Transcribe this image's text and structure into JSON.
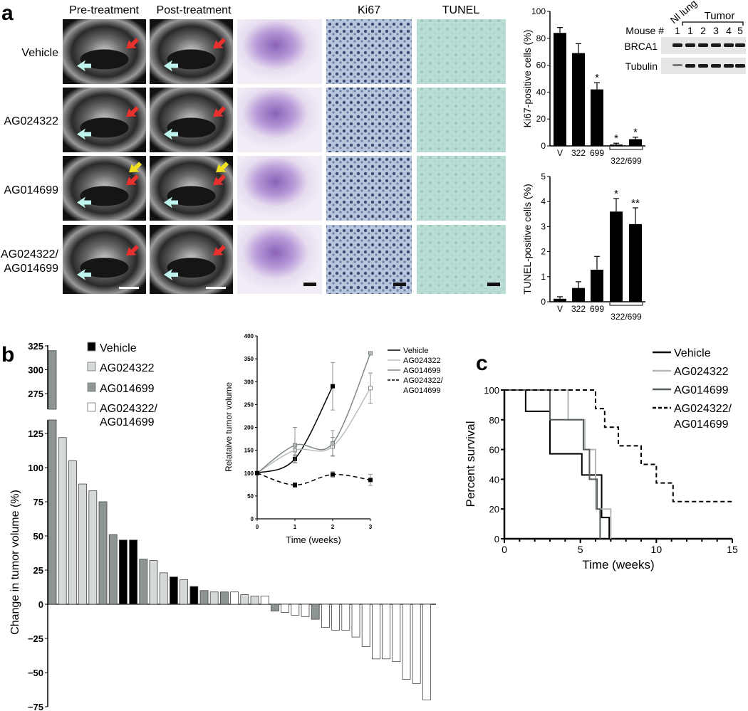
{
  "panel_labels": {
    "a": "a",
    "b": "b",
    "c": "c"
  },
  "panel_a": {
    "columns": [
      "Pre-treatment",
      "Post-treatment",
      "Ki67",
      "TUNEL"
    ],
    "rows": [
      [
        "Vehicle"
      ],
      [
        "AG024322"
      ],
      [
        "AG014699"
      ],
      [
        "AG024322/",
        "AG014699"
      ]
    ],
    "arrow_colors": {
      "cyan": "#bff3ee",
      "red": "#e8302e",
      "yellow": "#f0e020"
    }
  },
  "western_blot": {
    "nl_lung": "Nl lung",
    "tumor": "Tumor",
    "mouse_label": "Mouse #",
    "lanes": [
      "1",
      "1",
      "2",
      "3",
      "4",
      "5"
    ],
    "bands": [
      "BRCA1",
      "Tubulin"
    ]
  },
  "chart_data": [
    {
      "id": "ki67",
      "type": "bar",
      "ylabel": "Ki67-positive cells (%)",
      "categories": [
        "V",
        "322",
        "699",
        "322/699",
        "322/699"
      ],
      "values": [
        84,
        69,
        42,
        1,
        5
      ],
      "errors": [
        4,
        7,
        5,
        1,
        1.5
      ],
      "annotations": [
        "",
        "",
        "*",
        "*",
        "*"
      ],
      "ylim": [
        0,
        100
      ],
      "yticks": [
        0,
        20,
        40,
        60,
        80,
        100
      ],
      "color": "#000000"
    },
    {
      "id": "tunel",
      "type": "bar",
      "ylabel": "TUNEL-positive cells (%)",
      "categories": [
        "V",
        "322",
        "699",
        "322/699",
        "322/699"
      ],
      "values": [
        0.12,
        0.55,
        1.28,
        3.6,
        3.1
      ],
      "errors": [
        0.08,
        0.25,
        0.53,
        0.52,
        0.65
      ],
      "annotations": [
        "",
        "",
        "",
        "*",
        "**"
      ],
      "ylim": [
        0,
        5
      ],
      "yticks": [
        0,
        1,
        2,
        3,
        4,
        5
      ],
      "color": "#000000"
    },
    {
      "id": "waterfall",
      "type": "bar",
      "ylabel": "Change in tumor volume (%)",
      "ylim": [
        -75,
        325
      ],
      "axis_break": [
        135,
        262
      ],
      "yticks": [
        -75,
        -50,
        -25,
        0,
        25,
        50,
        75,
        100,
        125,
        275,
        300,
        325
      ],
      "legend": [
        {
          "name": "Vehicle",
          "color": "#000000"
        },
        {
          "name": "AG024322",
          "color": "#d6d9d9"
        },
        {
          "name": "AG014699",
          "color": "#8e9595"
        },
        {
          "name": "AG024322/",
          "name2": "AG014699",
          "color": "#ffffff"
        }
      ],
      "values": [
        320,
        122,
        105,
        88,
        83,
        75,
        51,
        47,
        47,
        33,
        32,
        23,
        20,
        18,
        13,
        10,
        9,
        9,
        9,
        7,
        6,
        6,
        -5,
        -6,
        -8,
        -9,
        -11,
        -17,
        -19,
        -19,
        -24,
        -31,
        -40,
        -40,
        -42,
        -55,
        -58,
        -70
      ],
      "groups": [
        2,
        1,
        1,
        1,
        1,
        2,
        2,
        0,
        0,
        2,
        1,
        1,
        0,
        1,
        0,
        2,
        1,
        2,
        3,
        1,
        1,
        3,
        2,
        3,
        3,
        3,
        2,
        3,
        3,
        3,
        3,
        3,
        3,
        3,
        3,
        3,
        3,
        3
      ]
    },
    {
      "id": "tumor-volume",
      "type": "line",
      "xlabel": "Time (weeks)",
      "ylabel": "Relataive tumor volume",
      "x": [
        0,
        1,
        2,
        3
      ],
      "xlim": [
        0,
        3
      ],
      "ylim": [
        0,
        400
      ],
      "yticks": [
        0,
        50,
        100,
        150,
        200,
        250,
        300,
        350,
        400
      ],
      "series": [
        {
          "name": "Vehicle",
          "values": [
            100,
            131,
            290,
            null
          ],
          "errors": [
            0,
            8,
            52,
            null
          ],
          "color": "#000000",
          "dash": false,
          "marker_fill": "#000000"
        },
        {
          "name": "AG024322",
          "values": [
            100,
            150,
            158,
            286
          ],
          "errors": [
            0,
            10,
            20,
            33
          ],
          "color": "#b9bdbd",
          "dash": false,
          "marker_fill": "#ffffff"
        },
        {
          "name": "AG014699",
          "values": [
            100,
            161,
            165,
            362
          ],
          "errors": [
            0,
            39,
            28,
            0
          ],
          "color": "#7f8888",
          "dash": false,
          "marker_fill": "#b0b5b5"
        },
        {
          "name": "AG024322/",
          "name2": "AG014699",
          "values": [
            100,
            74,
            97,
            85
          ],
          "errors": [
            0,
            5,
            6,
            12
          ],
          "color": "#000000",
          "dash": true,
          "marker_fill": "#000000"
        }
      ]
    },
    {
      "id": "survival",
      "type": "line",
      "xlabel": "Time (weeks)",
      "ylabel": "Percent survival",
      "xlim": [
        0,
        15
      ],
      "ylim": [
        0,
        100
      ],
      "xticks": [
        0,
        5,
        10,
        15
      ],
      "yticks": [
        0,
        20,
        40,
        60,
        80,
        100
      ],
      "series": [
        {
          "name": "Vehicle",
          "color": "#000000",
          "dash": false,
          "steps": [
            [
              0,
              100
            ],
            [
              1.4,
              85.7
            ],
            [
              3,
              57.1
            ],
            [
              5.1,
              42.9
            ],
            [
              6.4,
              14.3
            ],
            [
              6.9,
              0
            ]
          ]
        },
        {
          "name": "AG024322",
          "color": "#b3b8b8",
          "dash": false,
          "steps": [
            [
              0,
              100
            ],
            [
              4.2,
              80
            ],
            [
              5.3,
              60
            ],
            [
              6.0,
              20
            ],
            [
              7.0,
              0
            ]
          ]
        },
        {
          "name": "AG014699",
          "color": "#555c5c",
          "dash": false,
          "steps": [
            [
              0,
              100
            ],
            [
              3,
              80
            ],
            [
              5.2,
              60
            ],
            [
              5.6,
              40
            ],
            [
              6.1,
              20
            ],
            [
              6.3,
              0
            ]
          ]
        },
        {
          "name": "AG024322/",
          "name2": "AG014699",
          "color": "#000000",
          "dash": true,
          "steps": [
            [
              0,
              100
            ],
            [
              6,
              87.5
            ],
            [
              6.6,
              75
            ],
            [
              7.5,
              62.5
            ],
            [
              9,
              50
            ],
            [
              10,
              37.5
            ],
            [
              11.1,
              25
            ],
            [
              15,
              25
            ]
          ]
        }
      ]
    }
  ]
}
